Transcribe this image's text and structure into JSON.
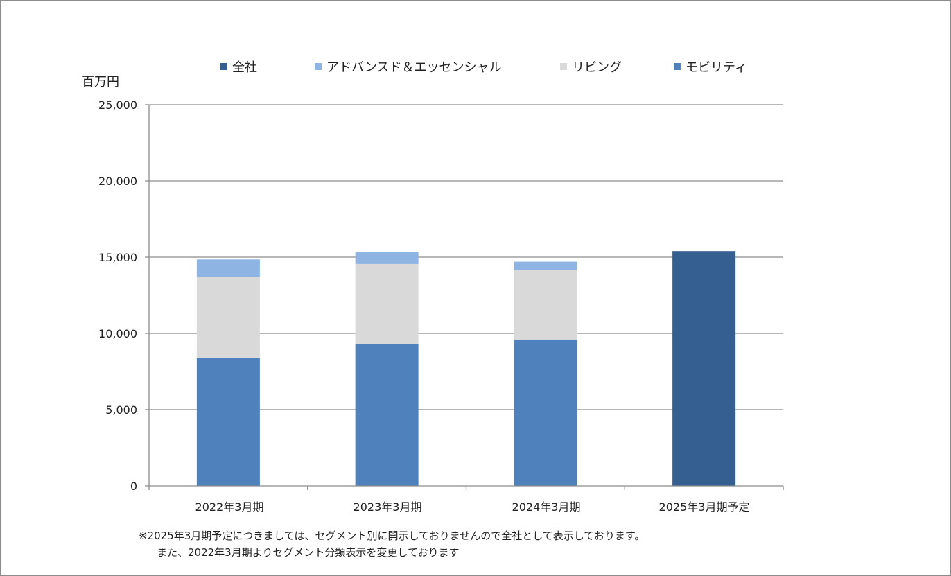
{
  "chart_data": {
    "type": "bar",
    "stacked": true,
    "unit_label": "百万円",
    "categories": [
      "2022年3月期",
      "2023年3月期",
      "2024年3月期",
      "2025年3月期予定"
    ],
    "series": [
      {
        "name": "全社",
        "color": "#355F91",
        "values": [
          0,
          0,
          0,
          15400
        ]
      },
      {
        "name": "アドバンスド＆エッセンシャル",
        "color": "#8EB4E3",
        "values": [
          1150,
          800,
          550,
          0
        ]
      },
      {
        "name": "リビング",
        "color": "#D9D9D9",
        "values": [
          5300,
          5250,
          4550,
          0
        ]
      },
      {
        "name": "モビリティ",
        "color": "#4F81BD",
        "values": [
          8400,
          9300,
          9600,
          0
        ]
      }
    ],
    "stack_order_bottom_to_top": [
      "モビリティ",
      "リビング",
      "アドバンスド＆エッセンシャル",
      "全社"
    ],
    "ylim": [
      0,
      25000
    ],
    "yticks": [
      "0",
      "5,000",
      "10,000",
      "15,000",
      "20,000",
      "25,000"
    ],
    "grid": true,
    "legend_position": "top",
    "notes": [
      "※2025年3月期予定につきましては、セグメント別に開示しておりませんので全社として表示しております。",
      "また、2022年3月期よりセグメント分類表示を変更しております"
    ]
  }
}
